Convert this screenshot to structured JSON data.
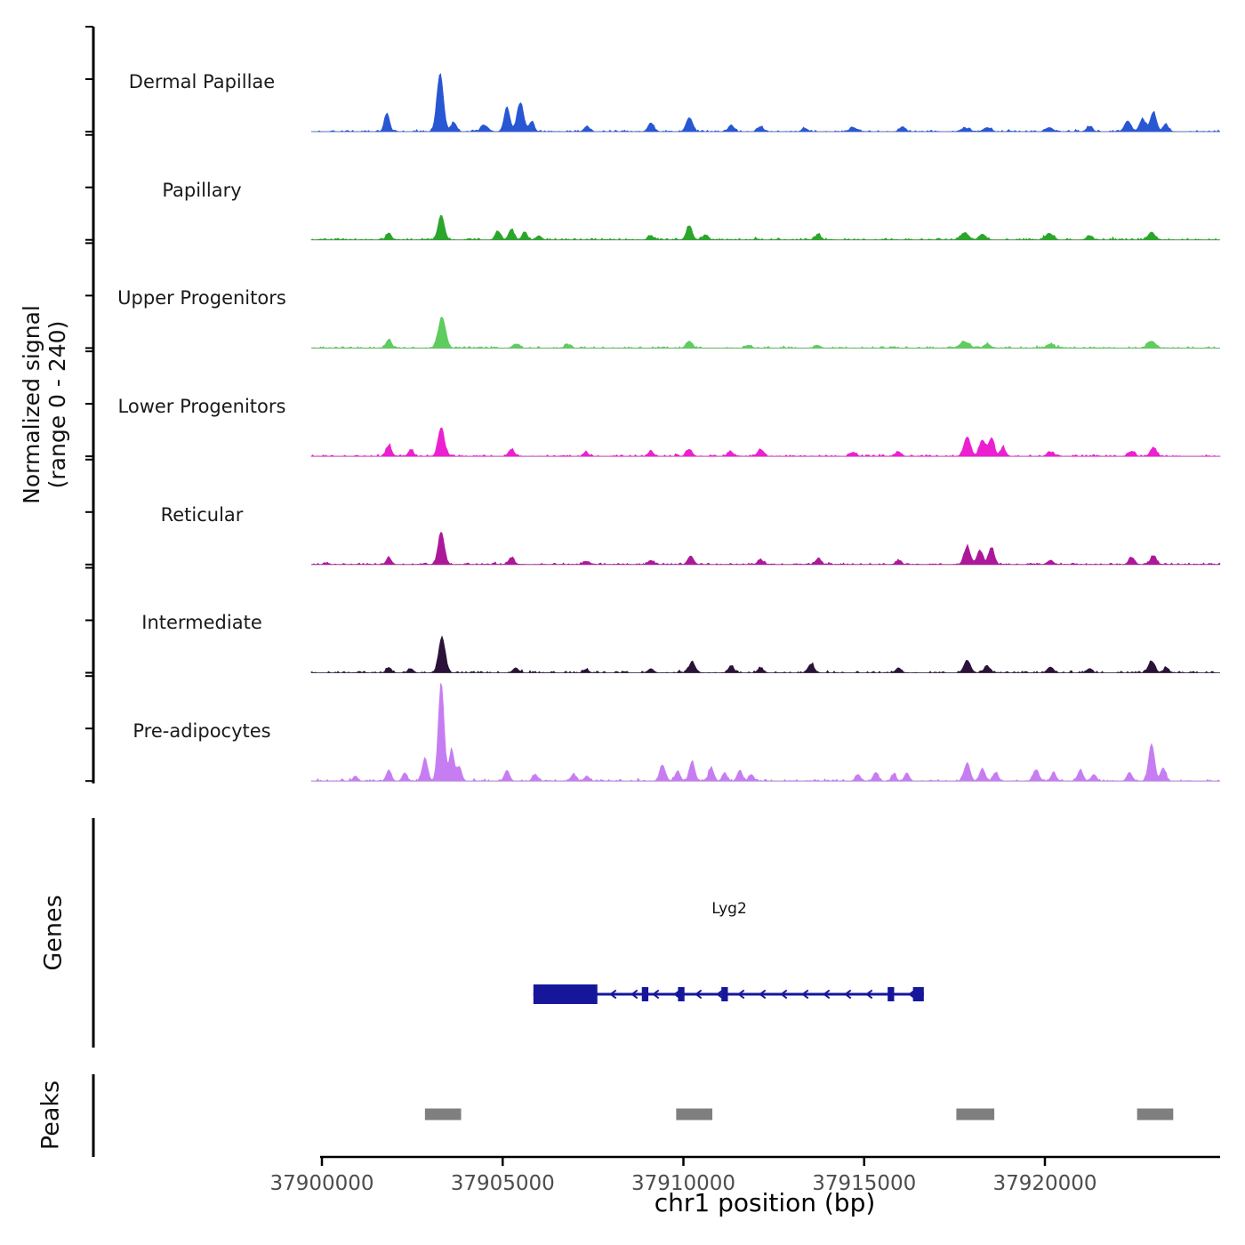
{
  "ylabel": {
    "line1": "Normalized signal",
    "line2": "(range 0 - 240)"
  },
  "sections": {
    "genes": "Genes",
    "peaks": "Peaks"
  },
  "xaxis": {
    "label": "chr1 position (bp)"
  },
  "chart_data": {
    "type": "area",
    "title": "",
    "xlabel": "chr1 position (bp)",
    "ylabel": "Normalized signal (range 0 - 240)",
    "x_range_bp": [
      37899700,
      37924850
    ],
    "y_range": [
      0,
      240
    ],
    "x_ticks": [
      37900000,
      37905000,
      37910000,
      37915000,
      37920000
    ],
    "x_tick_labels": [
      "37900000",
      "37905000",
      "37910000",
      "37915000",
      "37920000"
    ],
    "grid": false,
    "legend": "none",
    "tracks": [
      {
        "label": "Dermal Papillae",
        "color": "#2857d4",
        "peaks": [
          [
            37901800,
            45,
            140
          ],
          [
            37903270,
            140,
            180
          ],
          [
            37903650,
            22,
            150
          ],
          [
            37904500,
            15,
            200
          ],
          [
            37905120,
            58,
            160
          ],
          [
            37905490,
            70,
            180
          ],
          [
            37905800,
            24,
            140
          ],
          [
            37907330,
            13,
            150
          ],
          [
            37909100,
            21,
            160
          ],
          [
            37910160,
            34,
            170
          ],
          [
            37911320,
            16,
            150
          ],
          [
            37912130,
            12,
            160
          ],
          [
            37913360,
            8,
            160
          ],
          [
            37914700,
            10,
            180
          ],
          [
            37916060,
            12,
            160
          ],
          [
            37917800,
            8,
            250
          ],
          [
            37918400,
            10,
            200
          ],
          [
            37920120,
            10,
            200
          ],
          [
            37921230,
            12,
            160
          ],
          [
            37922290,
            26,
            180
          ],
          [
            37922700,
            30,
            170
          ],
          [
            37923000,
            47,
            170
          ],
          [
            37923350,
            16,
            150
          ]
        ]
      },
      {
        "label": "Papillary",
        "color": "#2ca52c",
        "peaks": [
          [
            37901850,
            17,
            140
          ],
          [
            37903300,
            60,
            170
          ],
          [
            37904870,
            21,
            150
          ],
          [
            37905240,
            26,
            150
          ],
          [
            37905610,
            19,
            140
          ],
          [
            37906000,
            10,
            150
          ],
          [
            37909100,
            10,
            150
          ],
          [
            37910160,
            34,
            160
          ],
          [
            37910600,
            12,
            140
          ],
          [
            37913730,
            12,
            160
          ],
          [
            37917780,
            17,
            220
          ],
          [
            37918270,
            14,
            180
          ],
          [
            37920120,
            16,
            200
          ],
          [
            37921230,
            10,
            160
          ],
          [
            37922950,
            19,
            180
          ]
        ]
      },
      {
        "label": "Upper Progenitors",
        "color": "#5ecc5e",
        "peaks": [
          [
            37901850,
            21,
            150
          ],
          [
            37903320,
            75,
            200
          ],
          [
            37905360,
            10,
            170
          ],
          [
            37906800,
            8,
            160
          ],
          [
            37910160,
            17,
            170
          ],
          [
            37911800,
            7,
            160
          ],
          [
            37913700,
            7,
            160
          ],
          [
            37917780,
            15,
            260
          ],
          [
            37918400,
            10,
            180
          ],
          [
            37920150,
            10,
            200
          ],
          [
            37922950,
            17,
            220
          ]
        ]
      },
      {
        "label": "Lower Progenitors",
        "color": "#ec1fd1",
        "peaks": [
          [
            37901850,
            26,
            150
          ],
          [
            37902460,
            16,
            140
          ],
          [
            37903300,
            69,
            170
          ],
          [
            37905240,
            17,
            160
          ],
          [
            37907300,
            8,
            150
          ],
          [
            37909100,
            12,
            150
          ],
          [
            37910160,
            17,
            160
          ],
          [
            37911300,
            12,
            150
          ],
          [
            37912130,
            17,
            160
          ],
          [
            37914700,
            10,
            160
          ],
          [
            37915950,
            10,
            160
          ],
          [
            37917850,
            47,
            180
          ],
          [
            37918270,
            39,
            170
          ],
          [
            37918520,
            43,
            160
          ],
          [
            37918840,
            20,
            150
          ],
          [
            37920150,
            10,
            180
          ],
          [
            37922400,
            12,
            160
          ],
          [
            37923000,
            21,
            170
          ]
        ]
      },
      {
        "label": "Reticular",
        "color": "#ad189b",
        "peaks": [
          [
            37901850,
            17,
            140
          ],
          [
            37903300,
            79,
            170
          ],
          [
            37905240,
            16,
            160
          ],
          [
            37907300,
            8,
            150
          ],
          [
            37909100,
            10,
            150
          ],
          [
            37910200,
            21,
            160
          ],
          [
            37912130,
            12,
            150
          ],
          [
            37913730,
            14,
            160
          ],
          [
            37915950,
            10,
            150
          ],
          [
            37917850,
            43,
            170
          ],
          [
            37918200,
            34,
            160
          ],
          [
            37918520,
            41,
            160
          ],
          [
            37920150,
            10,
            170
          ],
          [
            37922400,
            17,
            160
          ],
          [
            37923000,
            21,
            160
          ]
        ]
      },
      {
        "label": "Intermediate",
        "color": "#2a1238",
        "peaks": [
          [
            37901850,
            13,
            140
          ],
          [
            37902460,
            10,
            140
          ],
          [
            37903320,
            86,
            180
          ],
          [
            37905360,
            12,
            150
          ],
          [
            37907300,
            8,
            150
          ],
          [
            37909100,
            10,
            150
          ],
          [
            37910240,
            26,
            170
          ],
          [
            37911320,
            17,
            150
          ],
          [
            37912130,
            12,
            150
          ],
          [
            37913530,
            21,
            170
          ],
          [
            37915950,
            12,
            150
          ],
          [
            37917850,
            30,
            180
          ],
          [
            37918400,
            16,
            160
          ],
          [
            37920150,
            14,
            170
          ],
          [
            37921230,
            10,
            150
          ],
          [
            37922950,
            28,
            180
          ],
          [
            37923350,
            12,
            140
          ]
        ]
      },
      {
        "label": "Pre-adipocytes",
        "color": "#c77df2",
        "peaks": [
          [
            37900930,
            12,
            120
          ],
          [
            37901850,
            26,
            140
          ],
          [
            37902290,
            20,
            130
          ],
          [
            37902850,
            54,
            150
          ],
          [
            37903300,
            236,
            160
          ],
          [
            37903590,
            75,
            140
          ],
          [
            37903800,
            35,
            130
          ],
          [
            37905120,
            26,
            140
          ],
          [
            37905900,
            16,
            140
          ],
          [
            37906960,
            16,
            140
          ],
          [
            37907330,
            12,
            130
          ],
          [
            37909420,
            39,
            150
          ],
          [
            37909840,
            24,
            140
          ],
          [
            37910240,
            47,
            150
          ],
          [
            37910770,
            32,
            140
          ],
          [
            37911140,
            20,
            130
          ],
          [
            37911560,
            26,
            140
          ],
          [
            37911880,
            16,
            130
          ],
          [
            37914830,
            16,
            140
          ],
          [
            37915320,
            21,
            140
          ],
          [
            37915820,
            16,
            130
          ],
          [
            37916180,
            20,
            130
          ],
          [
            37917850,
            43,
            160
          ],
          [
            37918270,
            30,
            150
          ],
          [
            37918640,
            20,
            140
          ],
          [
            37919750,
            26,
            160
          ],
          [
            37920240,
            20,
            140
          ],
          [
            37920980,
            26,
            150
          ],
          [
            37921350,
            16,
            130
          ],
          [
            37922340,
            21,
            140
          ],
          [
            37922950,
            90,
            160
          ],
          [
            37923270,
            32,
            140
          ]
        ]
      }
    ],
    "gene": {
      "name": "Lyg2",
      "strand": "-",
      "color": "#16169b",
      "start": 37905850,
      "end": 37916650,
      "utr_box": [
        37905850,
        37907620
      ],
      "exons": [
        [
          37908850,
          37909030
        ],
        [
          37909850,
          37910030
        ],
        [
          37911050,
          37911230
        ],
        [
          37915650,
          37915830
        ],
        [
          37916350,
          37916650
        ]
      ]
    },
    "peak_calls": {
      "color": "#7f7f7f",
      "regions": [
        [
          37902850,
          37903850
        ],
        [
          37909800,
          37910800
        ],
        [
          37917550,
          37918600
        ],
        [
          37922550,
          37923550
        ]
      ]
    }
  }
}
